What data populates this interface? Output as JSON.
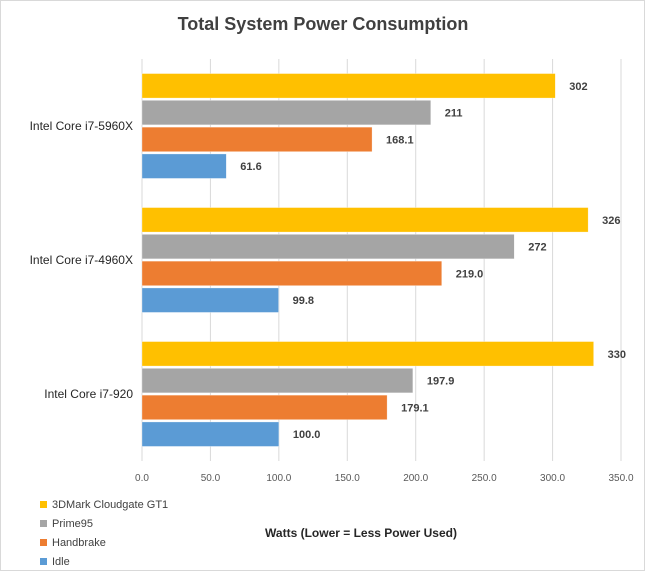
{
  "chart_data": {
    "type": "bar",
    "orientation": "horizontal",
    "title": "Total System Power Consumption",
    "xlabel": "Watts (Lower = Less Power Used)",
    "categories": [
      "Intel Core i7-5960X",
      "Intel Core i7-4960X",
      "Intel Core i7-920"
    ],
    "series": [
      {
        "name": "3DMark Cloudgate GT1",
        "color": "#ffc000",
        "values": [
          302,
          326,
          330
        ],
        "labels": [
          "302",
          "326",
          "330"
        ]
      },
      {
        "name": "Prime95",
        "color": "#a5a5a5",
        "values": [
          211,
          272,
          197.9
        ],
        "labels": [
          "211",
          "272",
          "197.9"
        ]
      },
      {
        "name": "Handbrake",
        "color": "#ed7d31",
        "values": [
          168.1,
          219.0,
          179.1
        ],
        "labels": [
          "168.1",
          "219.0",
          "179.1"
        ]
      },
      {
        "name": "Idle",
        "color": "#5b9bd5",
        "values": [
          61.6,
          99.8,
          100.0
        ],
        "labels": [
          "61.6",
          "99.8",
          "100.0"
        ]
      }
    ],
    "xlim": [
      0,
      350
    ],
    "xticks": [
      0,
      50,
      100,
      150,
      200,
      250,
      300,
      350
    ],
    "xtick_labels": [
      "0.0",
      "50.0",
      "100.0",
      "150.0",
      "200.0",
      "250.0",
      "300.0",
      "350.0"
    ],
    "grid": true,
    "legend_position": "bottom-left"
  }
}
